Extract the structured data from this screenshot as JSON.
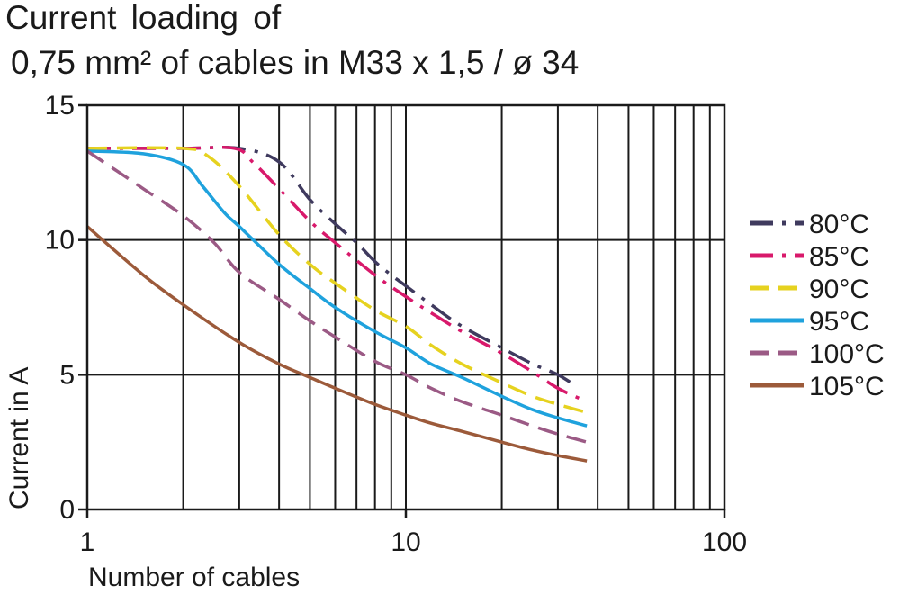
{
  "chart_data": {
    "type": "line",
    "title": "Current loading of",
    "subtitle": "0,75 mm² of cables in M33 x 1,5 / ø 34",
    "xlabel": "Number of cables",
    "ylabel": "Current in A",
    "xscale": "log",
    "xlim": [
      1,
      100
    ],
    "ylim": [
      0,
      15
    ],
    "x_ticks": [
      "1",
      "10",
      "100"
    ],
    "y_ticks": [
      "0",
      "5",
      "10",
      "15"
    ],
    "grid": true,
    "legend_position": "right",
    "series": [
      {
        "name": "80°C",
        "color": "#3f3a5e",
        "style": "dash-dot",
        "points": [
          [
            1,
            13.4
          ],
          [
            2,
            13.4
          ],
          [
            3,
            13.4
          ],
          [
            4,
            12.9
          ],
          [
            5,
            11.5
          ],
          [
            6,
            10.6
          ],
          [
            7,
            9.9
          ],
          [
            8,
            9.2
          ],
          [
            9,
            8.7
          ],
          [
            10,
            8.3
          ],
          [
            12,
            7.6
          ],
          [
            15,
            6.8
          ],
          [
            20,
            6.0
          ],
          [
            25,
            5.4
          ],
          [
            30,
            5.0
          ],
          [
            34,
            4.6
          ]
        ]
      },
      {
        "name": "85°C",
        "color": "#d8196b",
        "style": "dash-dot",
        "points": [
          [
            1,
            13.4
          ],
          [
            2,
            13.4
          ],
          [
            2.9,
            13.4
          ],
          [
            3.3,
            12.9
          ],
          [
            4,
            11.9
          ],
          [
            5,
            10.7
          ],
          [
            6,
            9.9
          ],
          [
            8,
            8.7
          ],
          [
            10,
            7.9
          ],
          [
            12,
            7.3
          ],
          [
            15,
            6.6
          ],
          [
            20,
            5.8
          ],
          [
            25,
            5.1
          ],
          [
            30,
            4.5
          ],
          [
            37,
            4.0
          ]
        ]
      },
      {
        "name": "90°C",
        "color": "#e6d21f",
        "style": "dashed",
        "points": [
          [
            1,
            13.4
          ],
          [
            2,
            13.4
          ],
          [
            2.4,
            13.1
          ],
          [
            3,
            12.0
          ],
          [
            4,
            10.2
          ],
          [
            5,
            9.1
          ],
          [
            6,
            8.4
          ],
          [
            8,
            7.4
          ],
          [
            10,
            6.8
          ],
          [
            12,
            6.1
          ],
          [
            15,
            5.4
          ],
          [
            20,
            4.7
          ],
          [
            25,
            4.2
          ],
          [
            30,
            3.9
          ],
          [
            37,
            3.6
          ]
        ]
      },
      {
        "name": "95°C",
        "color": "#1fa2dd",
        "style": "solid",
        "points": [
          [
            1,
            13.3
          ],
          [
            1.5,
            13.2
          ],
          [
            2,
            12.8
          ],
          [
            2.3,
            12.0
          ],
          [
            2.7,
            11.0
          ],
          [
            3,
            10.5
          ],
          [
            4,
            9.1
          ],
          [
            5,
            8.2
          ],
          [
            6,
            7.5
          ],
          [
            8,
            6.6
          ],
          [
            10,
            6.0
          ],
          [
            12,
            5.4
          ],
          [
            15,
            4.9
          ],
          [
            20,
            4.2
          ],
          [
            25,
            3.7
          ],
          [
            30,
            3.4
          ],
          [
            37,
            3.1
          ]
        ]
      },
      {
        "name": "100°C",
        "color": "#9b5a85",
        "style": "dashed",
        "points": [
          [
            1,
            13.3
          ],
          [
            1.5,
            11.9
          ],
          [
            2,
            10.9
          ],
          [
            2.5,
            9.9
          ],
          [
            3,
            8.8
          ],
          [
            4,
            7.8
          ],
          [
            5,
            7.0
          ],
          [
            6,
            6.4
          ],
          [
            8,
            5.5
          ],
          [
            10,
            5.0
          ],
          [
            12,
            4.5
          ],
          [
            15,
            4.0
          ],
          [
            20,
            3.5
          ],
          [
            25,
            3.1
          ],
          [
            30,
            2.8
          ],
          [
            37,
            2.5
          ]
        ]
      },
      {
        "name": "105°C",
        "color": "#9c5a3a",
        "style": "solid",
        "points": [
          [
            1,
            10.5
          ],
          [
            1.5,
            8.7
          ],
          [
            2,
            7.6
          ],
          [
            3,
            6.2
          ],
          [
            4,
            5.4
          ],
          [
            5,
            4.9
          ],
          [
            6,
            4.5
          ],
          [
            8,
            3.9
          ],
          [
            10,
            3.5
          ],
          [
            12,
            3.2
          ],
          [
            15,
            2.9
          ],
          [
            20,
            2.5
          ],
          [
            25,
            2.2
          ],
          [
            30,
            2.0
          ],
          [
            37,
            1.8
          ]
        ]
      }
    ]
  }
}
